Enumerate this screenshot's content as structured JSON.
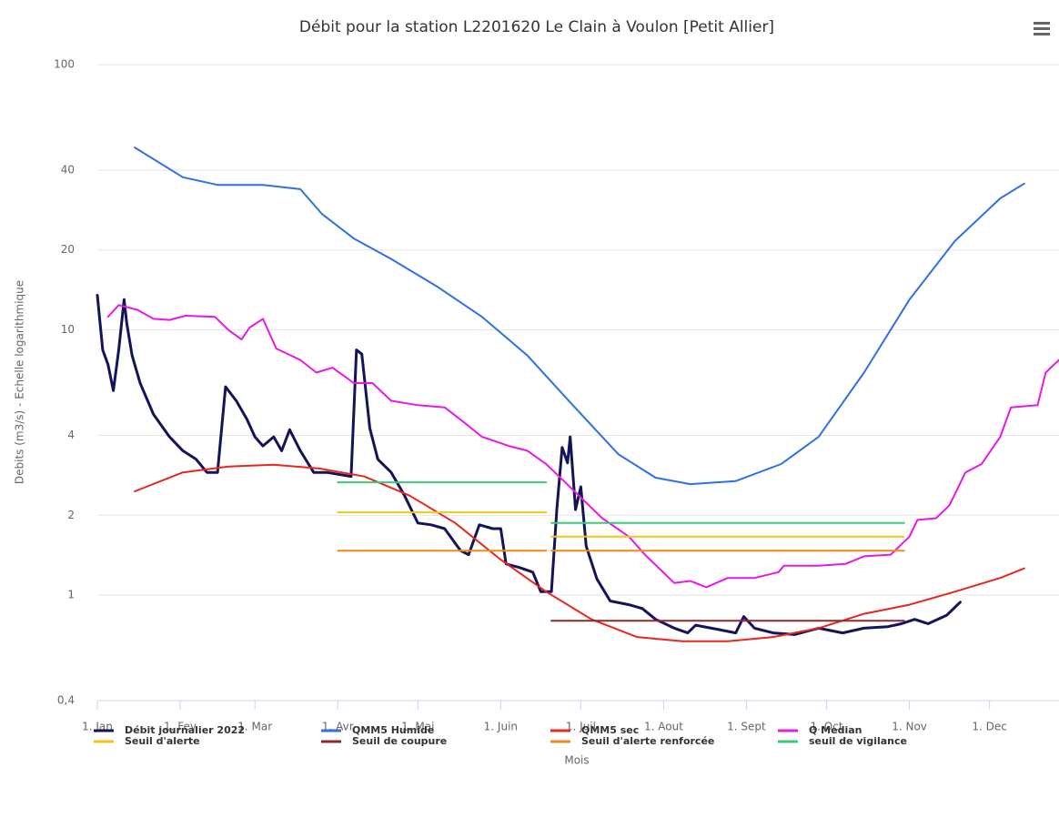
{
  "chart_data": {
    "type": "line",
    "title": "Débit pour la station L2201620 Le Clain à Voulon [Petit Allier]",
    "x_label": "Mois",
    "y_label": "Debits (m3/s) - Echelle logarithmique",
    "y_scale": "log",
    "grid": true,
    "legend_position": "bottom",
    "xlim": [
      0,
      360
    ],
    "xticks": [
      {
        "value": 0,
        "label": "1. Jan"
      },
      {
        "value": 31,
        "label": "1. Fev"
      },
      {
        "value": 59,
        "label": "1. Mar"
      },
      {
        "value": 90,
        "label": "1. Avr"
      },
      {
        "value": 120,
        "label": "1. Mai"
      },
      {
        "value": 151,
        "label": "1. Juin"
      },
      {
        "value": 181,
        "label": "1. Juil"
      },
      {
        "value": 212,
        "label": "1. Aout"
      },
      {
        "value": 243,
        "label": "1. Sept"
      },
      {
        "value": 273,
        "label": "1. Oct"
      },
      {
        "value": 304,
        "label": "1. Nov"
      },
      {
        "value": 334,
        "label": "1. Dec"
      }
    ],
    "ylim": [
      0.4,
      100
    ],
    "yticks": [
      {
        "value": 0.4,
        "label": "0,4"
      },
      1,
      2,
      4,
      10,
      20,
      40,
      100
    ],
    "series": [
      {
        "name": "Débit journalier 2022",
        "color": "#14145a",
        "width": 3,
        "x": [
          0,
          2,
          4,
          6,
          8,
          10,
          11,
          13,
          16,
          21,
          27,
          32,
          37,
          41,
          45,
          48,
          52,
          56,
          59,
          62,
          66,
          69,
          72,
          76,
          81,
          86,
          95,
          97,
          99,
          102,
          105,
          110,
          115,
          120,
          125,
          130,
          136,
          139,
          143,
          148,
          151,
          153,
          158,
          163,
          166,
          170,
          172,
          174,
          176,
          177,
          179,
          181,
          183,
          187,
          192,
          199,
          204,
          209,
          216,
          221,
          224,
          233,
          239,
          242,
          246,
          253,
          261,
          270,
          279,
          287,
          296,
          301,
          306,
          311,
          318,
          323
        ],
        "values": [
          13.5,
          8.4,
          7.4,
          5.9,
          8.4,
          13.0,
          10.6,
          8.0,
          6.3,
          4.8,
          3.95,
          3.5,
          3.25,
          2.9,
          2.9,
          6.1,
          5.4,
          4.6,
          3.95,
          3.65,
          3.95,
          3.5,
          4.2,
          3.5,
          2.9,
          2.9,
          2.8,
          8.4,
          8.1,
          4.25,
          3.25,
          2.9,
          2.37,
          1.87,
          1.84,
          1.78,
          1.47,
          1.42,
          1.84,
          1.78,
          1.78,
          1.31,
          1.27,
          1.22,
          1.03,
          1.03,
          2.1,
          3.6,
          3.15,
          3.95,
          2.1,
          2.56,
          1.53,
          1.15,
          0.95,
          0.92,
          0.89,
          0.81,
          0.75,
          0.72,
          0.77,
          0.74,
          0.72,
          0.83,
          0.75,
          0.72,
          0.71,
          0.75,
          0.72,
          0.75,
          0.76,
          0.78,
          0.81,
          0.78,
          0.84,
          0.94
        ]
      },
      {
        "name": "QMM5 Humide",
        "color": "#2f6fe8",
        "width": 2,
        "x": [
          14,
          32,
          45,
          62,
          76,
          84,
          96,
          110,
          127,
          144,
          161,
          178,
          195,
          209,
          222,
          239,
          256,
          270,
          287,
          304,
          321,
          338,
          347
        ],
        "values": [
          48.7,
          37.6,
          35.2,
          35.2,
          33.9,
          27.4,
          22.1,
          18.5,
          14.6,
          11.2,
          8.0,
          5.2,
          3.4,
          2.77,
          2.62,
          2.69,
          3.12,
          3.95,
          6.9,
          13.0,
          21.6,
          31.3,
          35.6
        ]
      },
      {
        "name": "QMM5 sec",
        "color": "#e8261e",
        "width": 2,
        "x": [
          14,
          32,
          49,
          66,
          83,
          100,
          117,
          134,
          151,
          168,
          185,
          202,
          219,
          236,
          253,
          270,
          287,
          304,
          321,
          338,
          347
        ],
        "values": [
          2.46,
          2.9,
          3.05,
          3.1,
          3.0,
          2.8,
          2.37,
          1.87,
          1.36,
          1.03,
          0.81,
          0.695,
          0.67,
          0.67,
          0.695,
          0.75,
          0.85,
          0.92,
          1.03,
          1.16,
          1.26
        ]
      },
      {
        "name": "Q Median",
        "color": "#e619e6",
        "width": 2,
        "x": [
          4,
          8,
          15,
          21,
          27,
          33,
          44,
          49,
          54,
          57,
          62,
          67,
          76,
          82,
          88,
          96,
          103,
          110,
          120,
          130,
          137,
          144,
          154,
          161,
          168,
          175,
          182,
          189,
          199,
          205,
          216,
          222,
          228,
          236,
          246,
          255,
          257,
          270,
          280,
          287,
          297,
          304,
          307,
          314,
          319,
          325,
          331,
          338,
          342,
          352,
          355,
          360
        ],
        "values": [
          11.2,
          12.4,
          11.9,
          11.0,
          10.9,
          11.3,
          11.2,
          10.0,
          9.2,
          10.2,
          11.0,
          8.5,
          7.7,
          6.9,
          7.2,
          6.3,
          6.3,
          5.4,
          5.2,
          5.1,
          4.5,
          3.95,
          3.65,
          3.5,
          3.12,
          2.67,
          2.28,
          1.95,
          1.66,
          1.42,
          1.11,
          1.13,
          1.07,
          1.16,
          1.16,
          1.22,
          1.29,
          1.29,
          1.31,
          1.4,
          1.42,
          1.66,
          1.92,
          1.95,
          2.18,
          2.9,
          3.12,
          3.95,
          5.1,
          5.2,
          6.9,
          7.7
        ]
      },
      {
        "name": "Seuil d'alerte",
        "color": "#f5c518",
        "width": 2,
        "x": [
          90,
          168,
          169,
          170,
          302
        ],
        "values": [
          2.05,
          2.05,
          null,
          1.66,
          1.66
        ]
      },
      {
        "name": "Seuil de coupure",
        "color": "#8b2a2a",
        "width": 2,
        "x": [
          170,
          302
        ],
        "values": [
          0.8,
          0.8
        ]
      },
      {
        "name": "Seuil d'alerte renforcée",
        "color": "#f08a1a",
        "width": 2,
        "x": [
          90,
          168,
          169,
          170,
          302
        ],
        "values": [
          1.47,
          1.47,
          null,
          1.47,
          1.47
        ]
      },
      {
        "name": "seuil de vigilance",
        "color": "#3cc87a",
        "width": 2,
        "x": [
          90,
          168,
          169,
          170,
          302
        ],
        "values": [
          2.66,
          2.66,
          null,
          1.87,
          1.87
        ]
      }
    ]
  }
}
